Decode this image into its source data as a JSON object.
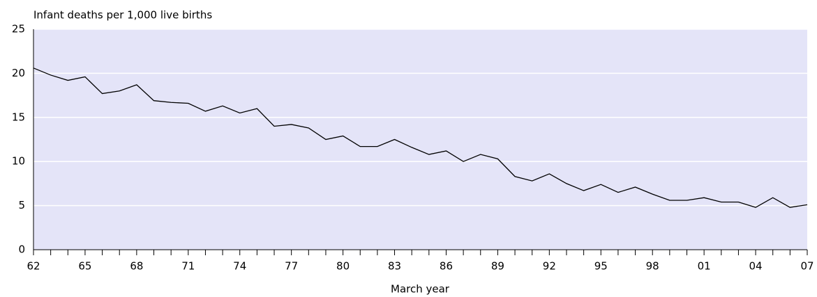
{
  "chart_data": {
    "type": "line",
    "title": "Infant deaths per 1,000 live births",
    "x_label": "March year",
    "categories": [
      "62",
      null,
      null,
      "65",
      null,
      null,
      "68",
      null,
      null,
      "71",
      null,
      null,
      "74",
      null,
      null,
      "77",
      null,
      null,
      "80",
      null,
      null,
      "83",
      null,
      null,
      "86",
      null,
      null,
      "89",
      null,
      null,
      "92",
      null,
      null,
      "95",
      null,
      null,
      "98",
      null,
      null,
      "01",
      null,
      null,
      "04",
      null,
      null,
      "07"
    ],
    "values": [
      20.6,
      19.8,
      19.2,
      19.6,
      17.7,
      18.0,
      18.7,
      16.9,
      16.7,
      16.6,
      15.7,
      16.3,
      15.5,
      16.0,
      14.0,
      14.2,
      13.8,
      12.5,
      12.9,
      11.7,
      11.7,
      12.5,
      11.6,
      10.8,
      11.2,
      10.0,
      10.8,
      10.3,
      8.3,
      7.8,
      8.6,
      7.5,
      6.7,
      7.4,
      6.5,
      7.1,
      6.3,
      5.6,
      5.6,
      5.9,
      5.4,
      5.4,
      4.8,
      5.9,
      4.8,
      5.1
    ],
    "color": "#000000",
    "background": "#e4e4f8",
    "ylim": [
      0,
      25
    ],
    "yticks": [
      0,
      5,
      10,
      15,
      20,
      25
    ],
    "grid": true
  }
}
